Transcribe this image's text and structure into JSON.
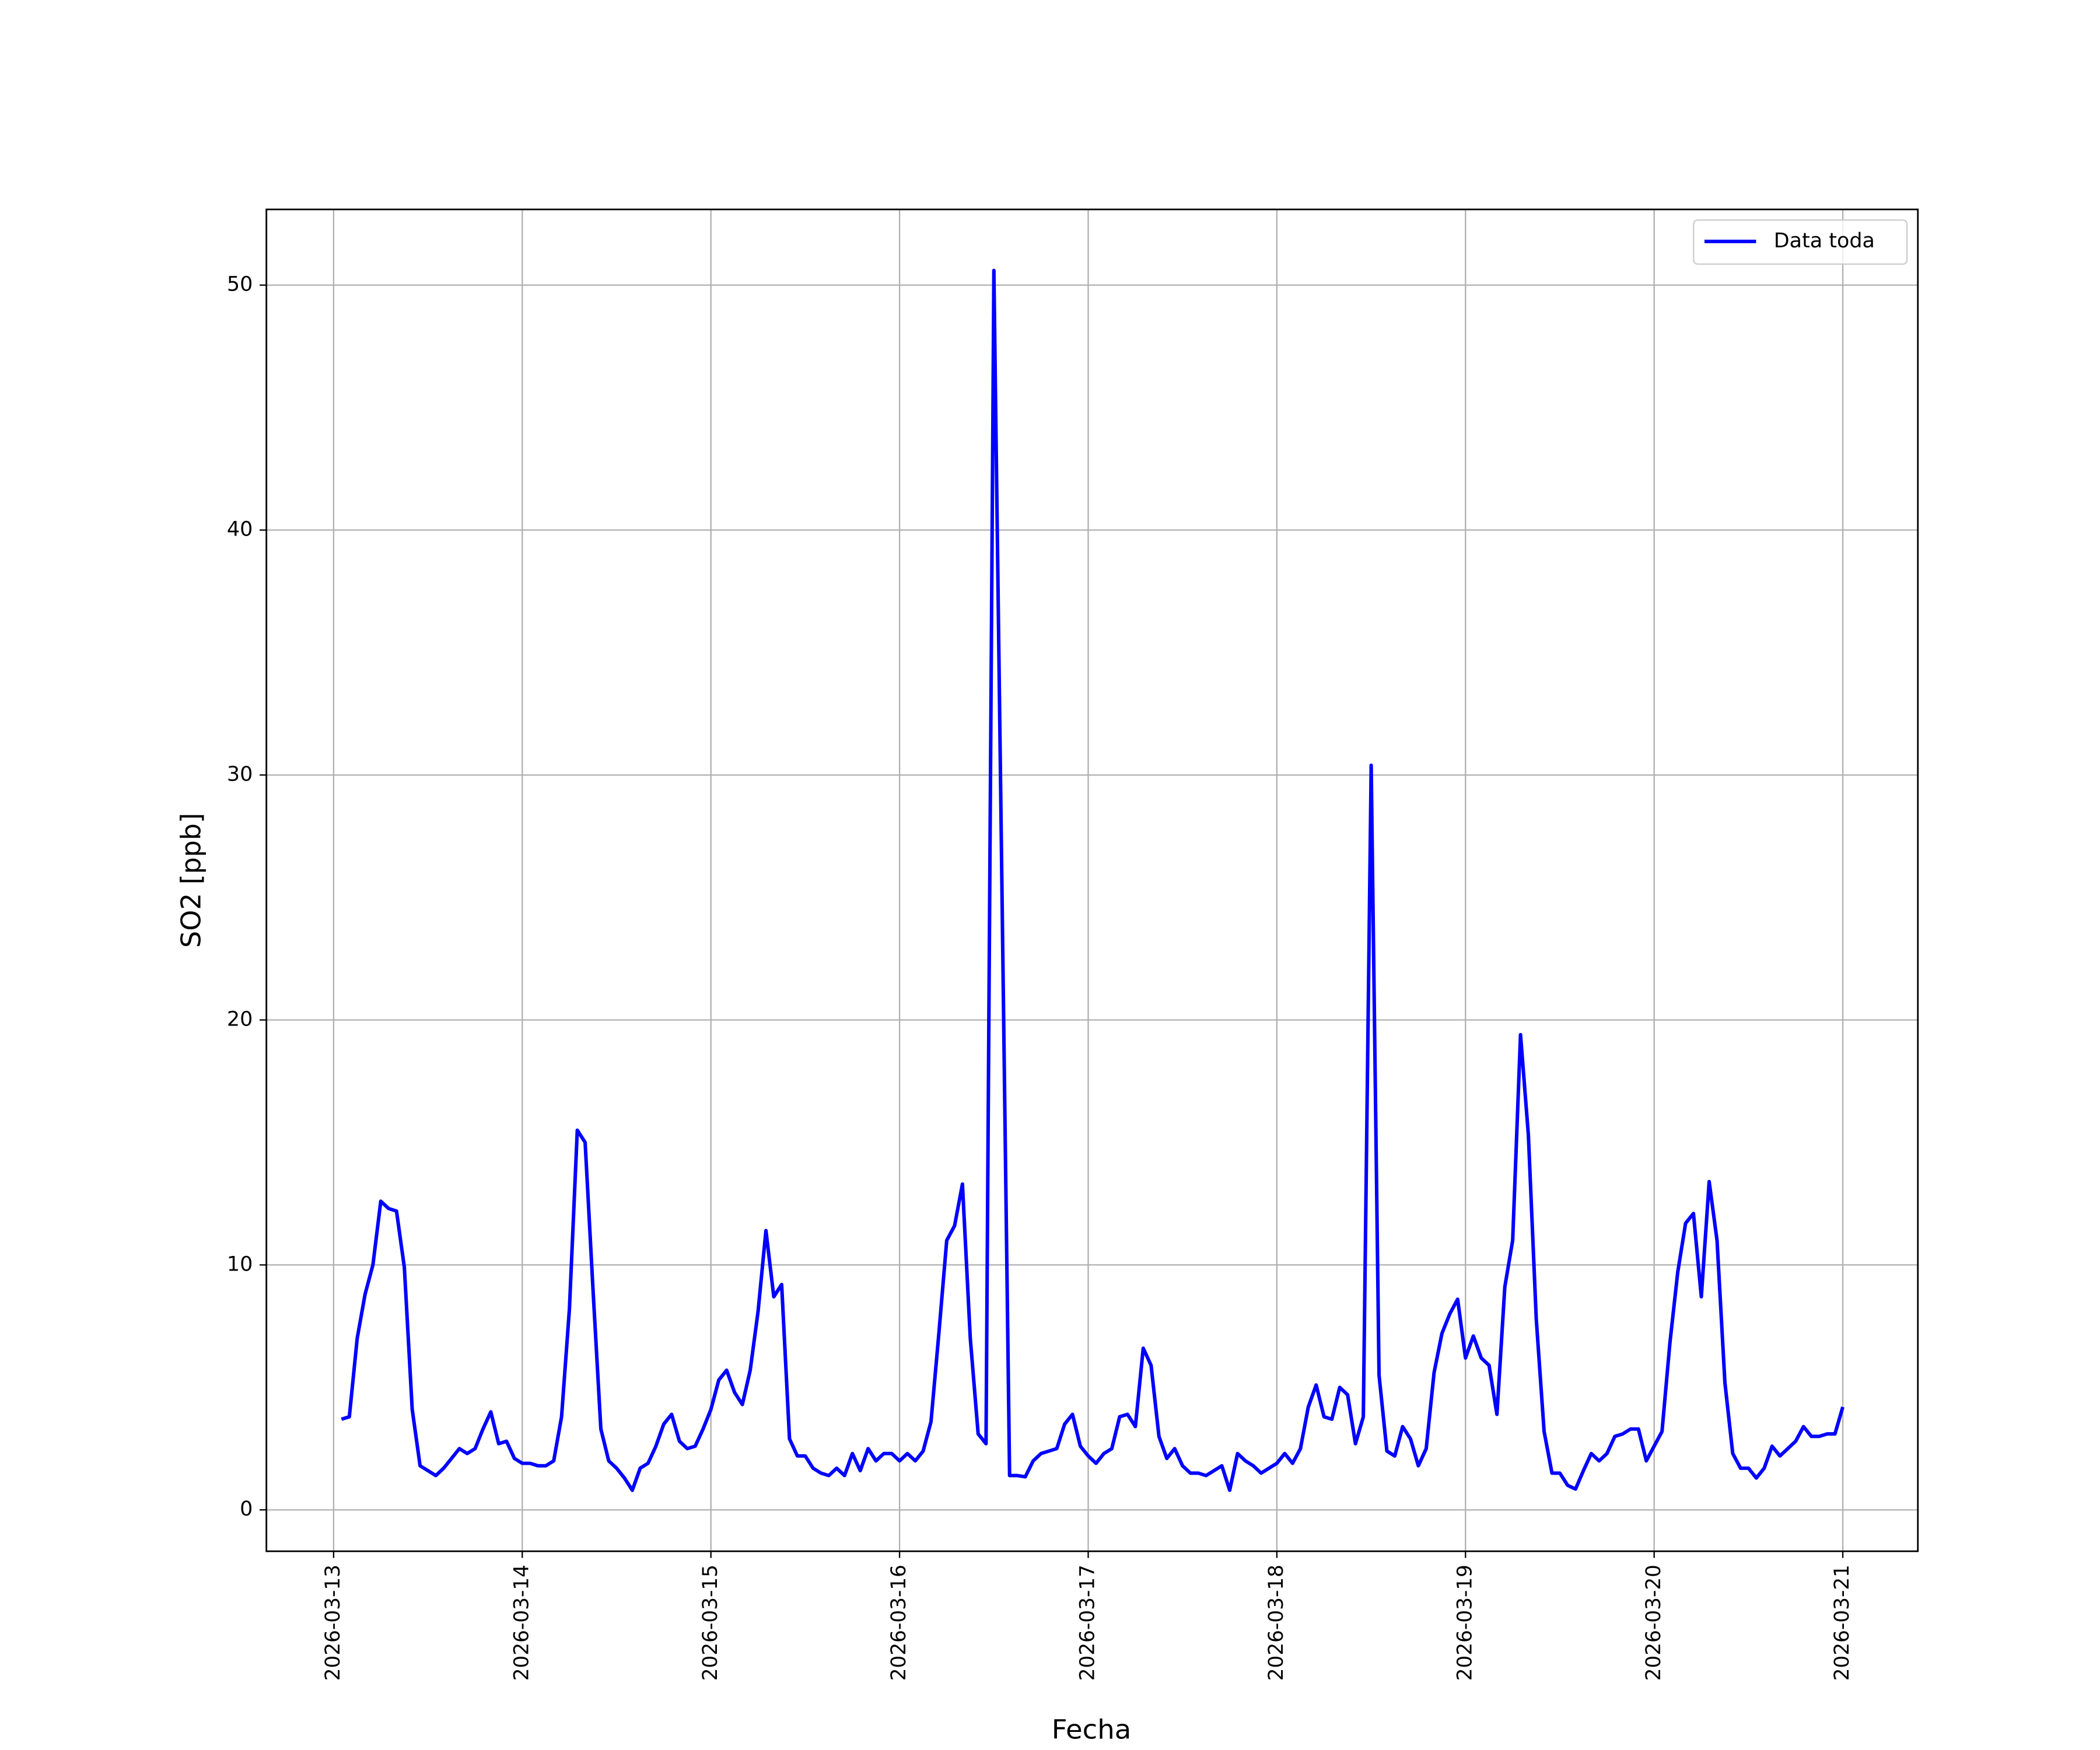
{
  "chart_data": {
    "type": "line",
    "xlabel": "Fecha",
    "ylabel": "SO2 [ppb]",
    "x": [
      "2026-03-13 01:00",
      "2026-03-13 02:00",
      "2026-03-13 03:00",
      "2026-03-13 04:00",
      "2026-03-13 05:00",
      "2026-03-13 06:00",
      "2026-03-13 07:00",
      "2026-03-13 08:00",
      "2026-03-13 09:00",
      "2026-03-13 10:00",
      "2026-03-13 11:00",
      "2026-03-13 12:00",
      "2026-03-13 13:00",
      "2026-03-13 14:00",
      "2026-03-13 15:00",
      "2026-03-13 16:00",
      "2026-03-13 17:00",
      "2026-03-13 18:00",
      "2026-03-13 19:00",
      "2026-03-13 20:00",
      "2026-03-13 21:00",
      "2026-03-13 22:00",
      "2026-03-13 23:00",
      "2026-03-14 00:00",
      "2026-03-14 01:00",
      "2026-03-14 02:00",
      "2026-03-14 03:00",
      "2026-03-14 04:00",
      "2026-03-14 05:00",
      "2026-03-14 06:00",
      "2026-03-14 07:00",
      "2026-03-14 08:00",
      "2026-03-14 09:00",
      "2026-03-14 10:00",
      "2026-03-14 11:00",
      "2026-03-14 12:00",
      "2026-03-14 13:00",
      "2026-03-14 14:00",
      "2026-03-14 15:00",
      "2026-03-14 16:00",
      "2026-03-14 17:00",
      "2026-03-14 18:00",
      "2026-03-14 19:00",
      "2026-03-14 20:00",
      "2026-03-14 21:00",
      "2026-03-14 22:00",
      "2026-03-14 23:00",
      "2026-03-15 00:00",
      "2026-03-15 01:00",
      "2026-03-15 02:00",
      "2026-03-15 03:00",
      "2026-03-15 04:00",
      "2026-03-15 05:00",
      "2026-03-15 06:00",
      "2026-03-15 07:00",
      "2026-03-15 08:00",
      "2026-03-15 09:00",
      "2026-03-15 10:00",
      "2026-03-15 11:00",
      "2026-03-15 12:00",
      "2026-03-15 13:00",
      "2026-03-15 14:00",
      "2026-03-15 15:00",
      "2026-03-15 16:00",
      "2026-03-15 17:00",
      "2026-03-15 18:00",
      "2026-03-15 19:00",
      "2026-03-15 20:00",
      "2026-03-15 21:00",
      "2026-03-15 22:00",
      "2026-03-15 23:00",
      "2026-03-16 00:00",
      "2026-03-16 01:00",
      "2026-03-16 02:00",
      "2026-03-16 03:00",
      "2026-03-16 04:00",
      "2026-03-16 05:00",
      "2026-03-16 06:00",
      "2026-03-16 07:00",
      "2026-03-16 08:00",
      "2026-03-16 09:00",
      "2026-03-16 10:00",
      "2026-03-16 11:00",
      "2026-03-16 12:00",
      "2026-03-16 13:00",
      "2026-03-16 14:00",
      "2026-03-16 15:00",
      "2026-03-16 16:00",
      "2026-03-16 17:00",
      "2026-03-16 18:00",
      "2026-03-16 19:00",
      "2026-03-16 20:00",
      "2026-03-16 21:00",
      "2026-03-16 22:00",
      "2026-03-16 23:00",
      "2026-03-17 00:00",
      "2026-03-17 01:00",
      "2026-03-17 02:00",
      "2026-03-17 03:00",
      "2026-03-17 04:00",
      "2026-03-17 05:00",
      "2026-03-17 06:00",
      "2026-03-17 07:00",
      "2026-03-17 08:00",
      "2026-03-17 09:00",
      "2026-03-17 10:00",
      "2026-03-17 11:00",
      "2026-03-17 12:00",
      "2026-03-17 13:00",
      "2026-03-17 14:00",
      "2026-03-17 15:00",
      "2026-03-17 16:00",
      "2026-03-17 17:00",
      "2026-03-17 18:00",
      "2026-03-17 19:00",
      "2026-03-17 20:00",
      "2026-03-17 21:00",
      "2026-03-17 22:00",
      "2026-03-17 23:00",
      "2026-03-18 00:00",
      "2026-03-18 01:00",
      "2026-03-18 02:00",
      "2026-03-18 03:00",
      "2026-03-18 04:00",
      "2026-03-18 05:00",
      "2026-03-18 06:00",
      "2026-03-18 07:00",
      "2026-03-18 08:00",
      "2026-03-18 09:00",
      "2026-03-18 10:00",
      "2026-03-18 11:00",
      "2026-03-18 12:00",
      "2026-03-18 13:00",
      "2026-03-18 14:00",
      "2026-03-18 15:00",
      "2026-03-18 16:00",
      "2026-03-18 17:00",
      "2026-03-18 18:00",
      "2026-03-18 19:00",
      "2026-03-18 20:00",
      "2026-03-18 21:00",
      "2026-03-18 22:00",
      "2026-03-18 23:00",
      "2026-03-19 00:00",
      "2026-03-19 01:00",
      "2026-03-19 02:00",
      "2026-03-19 03:00",
      "2026-03-19 04:00",
      "2026-03-19 05:00",
      "2026-03-19 06:00",
      "2026-03-19 07:00",
      "2026-03-19 08:00",
      "2026-03-19 09:00",
      "2026-03-19 10:00",
      "2026-03-19 11:00",
      "2026-03-19 12:00",
      "2026-03-19 13:00",
      "2026-03-19 14:00",
      "2026-03-19 15:00",
      "2026-03-19 16:00",
      "2026-03-19 17:00",
      "2026-03-19 18:00",
      "2026-03-19 19:00",
      "2026-03-19 20:00",
      "2026-03-19 21:00",
      "2026-03-19 22:00",
      "2026-03-19 23:00",
      "2026-03-20 00:00",
      "2026-03-20 01:00",
      "2026-03-20 02:00",
      "2026-03-20 03:00",
      "2026-03-20 04:00",
      "2026-03-20 05:00",
      "2026-03-20 06:00",
      "2026-03-20 07:00",
      "2026-03-20 08:00",
      "2026-03-20 09:00",
      "2026-03-20 10:00",
      "2026-03-20 11:00",
      "2026-03-20 12:00",
      "2026-03-20 13:00",
      "2026-03-20 14:00",
      "2026-03-20 15:00",
      "2026-03-20 16:00",
      "2026-03-20 17:00",
      "2026-03-20 18:00",
      "2026-03-20 19:00",
      "2026-03-20 20:00",
      "2026-03-20 21:00",
      "2026-03-20 22:00",
      "2026-03-20 23:00",
      "2026-03-21 00:00"
    ],
    "series": [
      {
        "name": "Data toda",
        "color": "#0000ff",
        "values": [
          3.7,
          3.8,
          7.0,
          8.8,
          10.0,
          12.6,
          12.3,
          12.2,
          9.9,
          4.1,
          1.8,
          1.6,
          1.4,
          1.7,
          2.1,
          2.5,
          2.3,
          2.5,
          3.3,
          4.0,
          2.7,
          2.8,
          2.1,
          1.9,
          1.9,
          1.8,
          1.8,
          2.0,
          3.8,
          8.2,
          15.5,
          15.0,
          9.0,
          3.3,
          2.0,
          1.7,
          1.3,
          0.8,
          1.7,
          1.9,
          2.6,
          3.5,
          3.9,
          2.8,
          2.5,
          2.6,
          3.3,
          4.1,
          5.3,
          5.7,
          4.8,
          4.3,
          5.7,
          8.1,
          11.4,
          8.7,
          9.2,
          2.9,
          2.2,
          2.2,
          1.7,
          1.5,
          1.4,
          1.7,
          1.4,
          2.3,
          1.6,
          2.5,
          2.0,
          2.3,
          2.3,
          2.0,
          2.3,
          2.0,
          2.4,
          3.6,
          7.2,
          11.0,
          11.6,
          13.3,
          7.0,
          3.1,
          2.7,
          50.6,
          26.0,
          1.4,
          1.4,
          1.35,
          2.0,
          2.3,
          2.4,
          2.5,
          3.5,
          3.9,
          2.6,
          2.2,
          1.9,
          2.3,
          2.5,
          3.8,
          3.9,
          3.4,
          6.6,
          5.9,
          3.0,
          2.1,
          2.5,
          1.8,
          1.5,
          1.5,
          1.4,
          1.6,
          1.8,
          0.8,
          2.3,
          2.0,
          1.8,
          1.5,
          1.7,
          1.9,
          2.3,
          1.9,
          2.5,
          4.2,
          5.1,
          3.8,
          3.7,
          5.0,
          4.7,
          2.7,
          3.8,
          30.4,
          5.5,
          2.4,
          2.2,
          3.4,
          2.9,
          1.8,
          2.5,
          5.6,
          7.2,
          8.0,
          8.6,
          6.2,
          7.1,
          6.2,
          5.9,
          3.9,
          9.1,
          11.0,
          19.4,
          15.3,
          7.8,
          3.2,
          1.5,
          1.5,
          1.0,
          0.85,
          1.6,
          2.3,
          2.0,
          2.3,
          3.0,
          3.1,
          3.3,
          3.3,
          2.0,
          2.6,
          3.2,
          6.8,
          9.7,
          11.7,
          12.1,
          8.7,
          13.4,
          11.0,
          5.2,
          2.3,
          1.7,
          1.7,
          1.3,
          1.7,
          2.6,
          2.2,
          2.5,
          2.8,
          3.4,
          3.0,
          3.0,
          3.1,
          3.1,
          4.2
        ]
      }
    ],
    "xlim": [
      "2026-03-12 15:27",
      "2026-03-21 09:33"
    ],
    "xticks": [
      "2026-03-13",
      "2026-03-14",
      "2026-03-15",
      "2026-03-16",
      "2026-03-17",
      "2026-03-18",
      "2026-03-19",
      "2026-03-20",
      "2026-03-21"
    ],
    "ylim": [
      -1.69,
      53.09
    ],
    "yticks": [
      0,
      10,
      20,
      30,
      40,
      50
    ],
    "grid": true,
    "legend": "upper right"
  }
}
